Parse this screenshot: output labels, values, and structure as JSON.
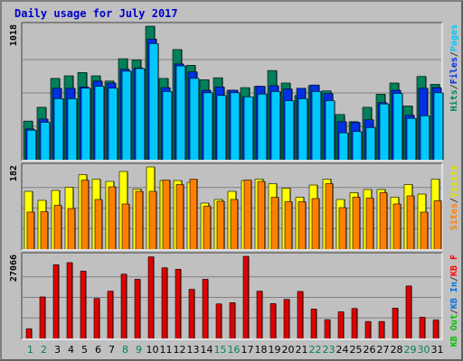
{
  "chart_data": {
    "type": "bar",
    "title": "Daily usage for July 2017",
    "categories": [
      "1",
      "2",
      "3",
      "4",
      "5",
      "6",
      "7",
      "8",
      "9",
      "10",
      "11",
      "12",
      "13",
      "14",
      "15",
      "16",
      "17",
      "18",
      "19",
      "20",
      "21",
      "22",
      "23",
      "24",
      "25",
      "26",
      "27",
      "28",
      "29",
      "30",
      "31"
    ],
    "weekend_days": [
      "1",
      "2",
      "8",
      "9",
      "15",
      "16",
      "22",
      "23",
      "29",
      "30"
    ],
    "panels": [
      {
        "name": "pages-files-hits",
        "ylabel": "1018",
        "ylim": [
          0,
          1018
        ],
        "right_labels": [
          {
            "text": "Pages",
            "color": "#00c8ff"
          },
          {
            "text": "/",
            "color": "#404040"
          },
          {
            "text": "Files",
            "color": "#0030e0"
          },
          {
            "text": "/",
            "color": "#404040"
          },
          {
            "text": "Hits",
            "color": "#00805c"
          }
        ],
        "series": [
          {
            "name": "Hits",
            "color": "#00805c",
            "values": [
              295,
              400,
              620,
              640,
              665,
              640,
              600,
              770,
              760,
              1018,
              620,
              840,
              720,
              610,
              625,
              530,
              550,
              560,
              680,
              585,
              490,
              565,
              525,
              345,
              290,
              400,
              500,
              585,
              410,
              635,
              575
            ]
          },
          {
            "name": "Files",
            "color": "#0030e0",
            "values": [
              235,
              310,
              545,
              545,
              555,
              600,
              585,
              690,
              700,
              920,
              550,
              730,
              670,
              530,
              555,
              530,
              480,
              560,
              565,
              540,
              545,
              570,
              505,
              290,
              285,
              305,
              435,
              530,
              340,
              545,
              550
            ]
          },
          {
            "name": "Pages",
            "color": "#00c8ff",
            "values": [
              225,
              285,
              465,
              465,
              545,
              560,
              545,
              675,
              695,
              885,
              520,
              715,
              620,
              510,
              490,
              510,
              480,
              500,
              520,
              450,
              465,
              520,
              450,
              205,
              215,
              245,
              425,
              505,
              315,
              335,
              510
            ]
          }
        ]
      },
      {
        "name": "visits-sites",
        "ylabel": "182",
        "ylim": [
          0,
          182
        ],
        "right_labels": [
          {
            "text": "Visits",
            "color": "#e0e000"
          },
          {
            "text": "/",
            "color": "#404040"
          },
          {
            "text": "Sites",
            "color": "#ff8000"
          }
        ],
        "series": [
          {
            "name": "Visits",
            "color": "#ffff00",
            "values": [
              128,
              108,
              130,
              137,
              165,
              155,
              150,
              172,
              133,
              182,
              152,
              152,
              148,
              102,
              110,
              128,
              152,
              155,
              145,
              135,
              115,
              142,
              155,
              110,
              125,
              132,
              132,
              115,
              143,
              122,
              155
            ]
          },
          {
            "name": "Sites",
            "color": "#ff8000",
            "values": [
              82,
              83,
              97,
              90,
              153,
              110,
              138,
              100,
              128,
              128,
              153,
              143,
              155,
              95,
              106,
              110,
              153,
              150,
              115,
              105,
              105,
              112,
              145,
              92,
              115,
              113,
              125,
              100,
              118,
              82,
              107
            ]
          }
        ]
      },
      {
        "name": "kbytes",
        "ylabel": "27066",
        "ylim": [
          0,
          27066
        ],
        "right_labels": [
          {
            "text": "KB F",
            "color": "#ff0000"
          },
          {
            "text": "/",
            "color": "#404040"
          },
          {
            "text": "KB In",
            "color": "#0070e0"
          },
          {
            "text": "/",
            "color": "#404040"
          },
          {
            "text": "KB Out",
            "color": "#00c000"
          }
        ],
        "series": [
          {
            "name": "KBytes",
            "color": "#e00000",
            "values": [
              3200,
              13700,
              24300,
              25000,
              22200,
              13200,
              15600,
              21200,
              19500,
              26900,
              23300,
              22800,
              16200,
              19500,
              11400,
              11800,
              27066,
              15600,
              11500,
              12900,
              15500,
              9700,
              6200,
              8800,
              9900,
              5600,
              5600,
              10000,
              17300,
              7000,
              6100
            ]
          }
        ]
      }
    ]
  }
}
